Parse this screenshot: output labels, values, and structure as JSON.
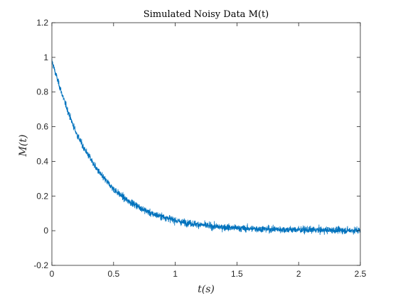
{
  "chart_data": {
    "type": "line",
    "title": "Simulated Noisy Data M(t)",
    "xlabel": "t(s)",
    "ylabel": "M(t)",
    "xlim": [
      0,
      2.5
    ],
    "ylim": [
      -0.2,
      1.2
    ],
    "xticks": [
      0,
      0.5,
      1,
      1.5,
      2,
      2.5
    ],
    "xtick_labels": [
      "0",
      "0.5",
      "1",
      "1.5",
      "2",
      "2.5"
    ],
    "yticks": [
      -0.2,
      0,
      0.2,
      0.4,
      0.6,
      0.8,
      1,
      1.2
    ],
    "ytick_labels": [
      "-0.2",
      "0",
      "0.2",
      "0.4",
      "0.6",
      "0.8",
      "1",
      "1.2"
    ],
    "grid": false,
    "line_color": "#0072BD",
    "x": [
      0,
      0.05,
      0.1,
      0.15,
      0.2,
      0.25,
      0.3,
      0.35,
      0.4,
      0.45,
      0.5,
      0.55,
      0.6,
      0.65,
      0.7,
      0.75,
      0.8,
      0.85,
      0.9,
      0.95,
      1.0,
      1.05,
      1.1,
      1.15,
      1.2,
      1.25,
      1.3,
      1.35,
      1.4,
      1.45,
      1.5,
      1.55,
      1.6,
      1.65,
      1.7,
      1.75,
      1.8,
      1.85,
      1.9,
      1.95,
      2.0,
      2.05,
      2.1,
      2.15,
      2.2,
      2.25,
      2.3,
      2.35,
      2.4,
      2.45,
      2.5
    ],
    "y": [
      0.98,
      0.86,
      0.75,
      0.65,
      0.56,
      0.49,
      0.43,
      0.37,
      0.32,
      0.28,
      0.24,
      0.21,
      0.18,
      0.16,
      0.14,
      0.12,
      0.1,
      0.09,
      0.08,
      0.07,
      0.06,
      0.05,
      0.045,
      0.04,
      0.035,
      0.03,
      0.025,
      0.022,
      0.02,
      0.018,
      0.015,
      0.013,
      0.012,
      0.011,
      0.01,
      0.009,
      0.008,
      0.007,
      0.006,
      0.006,
      0.005,
      0.005,
      0.004,
      0.004,
      0.003,
      0.003,
      0.003,
      0.002,
      0.002,
      0.002,
      0.002
    ],
    "noise_amplitude": 0.035
  }
}
